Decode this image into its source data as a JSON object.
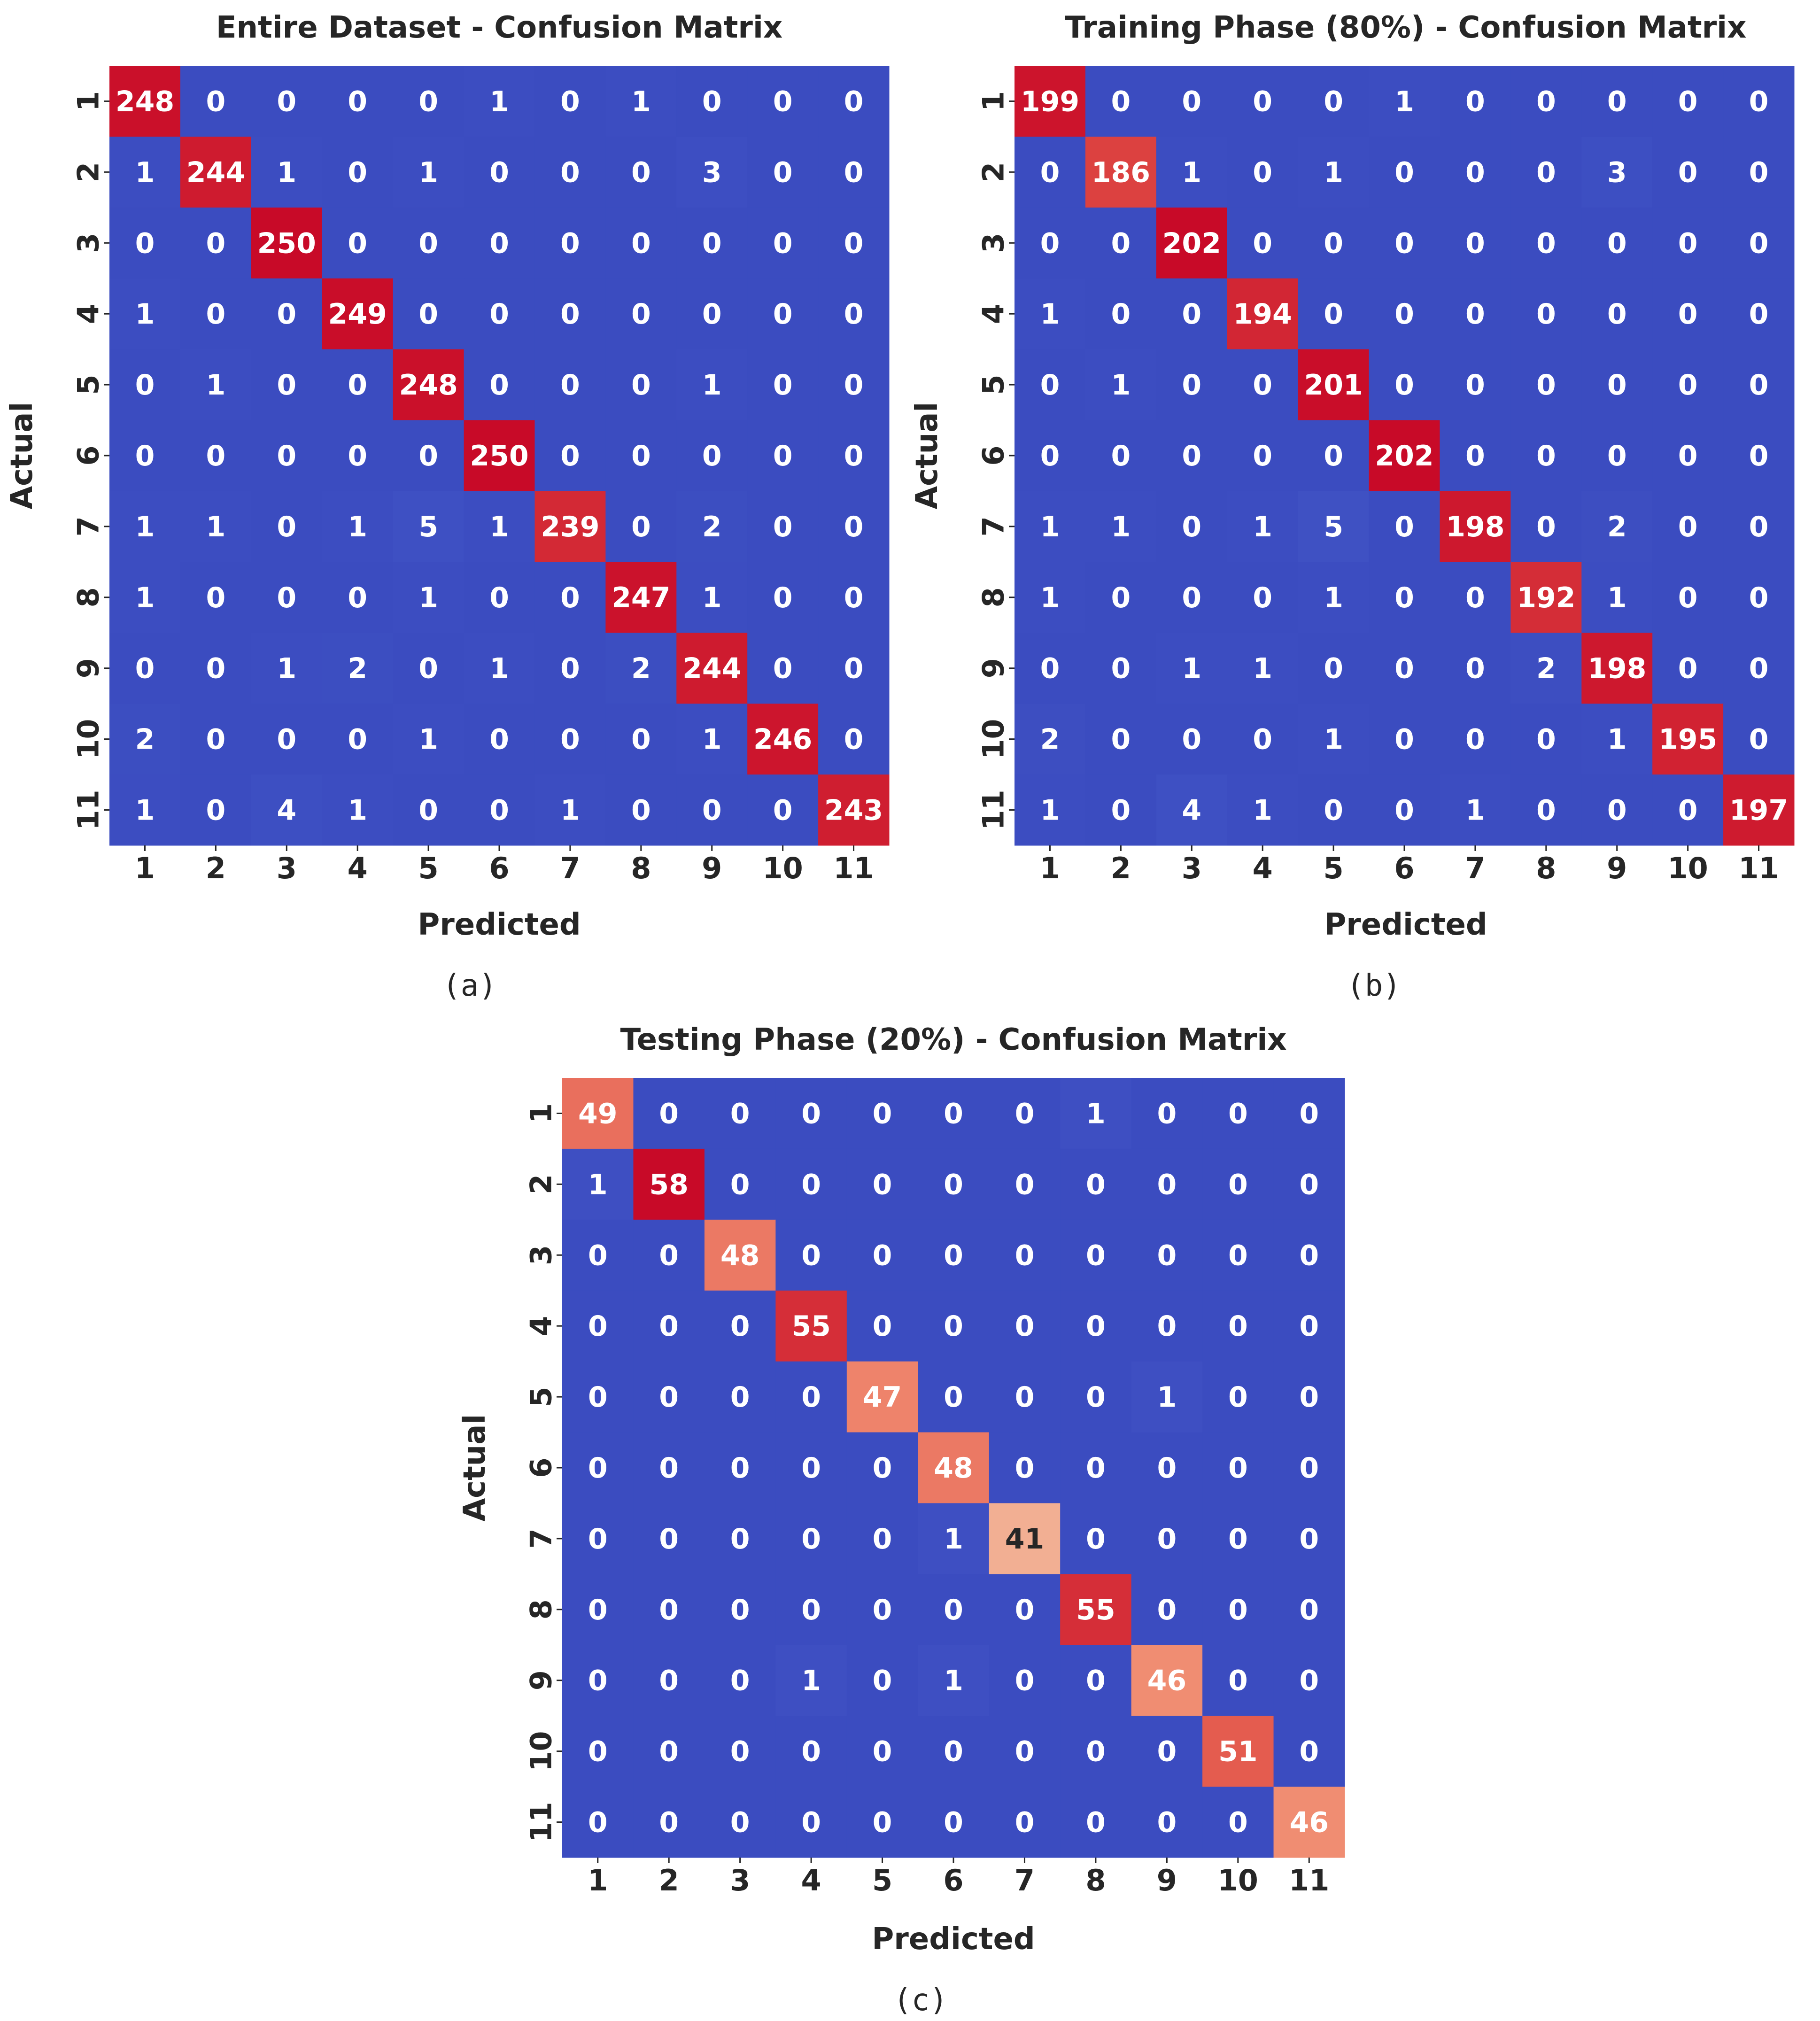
{
  "chart_data": [
    {
      "type": "heatmap",
      "title": "Entire Dataset - Confusion Matrix",
      "xlabel": "Predicted",
      "ylabel": "Actual",
      "caption": "(a)",
      "x_categories": [
        "1",
        "2",
        "3",
        "4",
        "5",
        "6",
        "7",
        "8",
        "9",
        "10",
        "11"
      ],
      "y_categories": [
        "1",
        "2",
        "3",
        "4",
        "5",
        "6",
        "7",
        "8",
        "9",
        "10",
        "11"
      ],
      "colormap": "coolwarm",
      "vmin": 0,
      "vmax": 250,
      "matrix": [
        [
          248,
          0,
          0,
          0,
          0,
          1,
          0,
          1,
          0,
          0,
          0
        ],
        [
          1,
          244,
          1,
          0,
          1,
          0,
          0,
          0,
          3,
          0,
          0
        ],
        [
          0,
          0,
          250,
          0,
          0,
          0,
          0,
          0,
          0,
          0,
          0
        ],
        [
          1,
          0,
          0,
          249,
          0,
          0,
          0,
          0,
          0,
          0,
          0
        ],
        [
          0,
          1,
          0,
          0,
          248,
          0,
          0,
          0,
          1,
          0,
          0
        ],
        [
          0,
          0,
          0,
          0,
          0,
          250,
          0,
          0,
          0,
          0,
          0
        ],
        [
          1,
          1,
          0,
          1,
          5,
          1,
          239,
          0,
          2,
          0,
          0
        ],
        [
          1,
          0,
          0,
          0,
          1,
          0,
          0,
          247,
          1,
          0,
          0
        ],
        [
          0,
          0,
          1,
          2,
          0,
          1,
          0,
          2,
          244,
          0,
          0
        ],
        [
          2,
          0,
          0,
          0,
          1,
          0,
          0,
          0,
          1,
          246,
          0
        ],
        [
          1,
          0,
          4,
          1,
          0,
          0,
          1,
          0,
          0,
          0,
          243
        ]
      ]
    },
    {
      "type": "heatmap",
      "title": "Training Phase (80%) - Confusion Matrix",
      "xlabel": "Predicted",
      "ylabel": "Actual",
      "caption": "(b)",
      "x_categories": [
        "1",
        "2",
        "3",
        "4",
        "5",
        "6",
        "7",
        "8",
        "9",
        "10",
        "11"
      ],
      "y_categories": [
        "1",
        "2",
        "3",
        "4",
        "5",
        "6",
        "7",
        "8",
        "9",
        "10",
        "11"
      ],
      "colormap": "coolwarm",
      "vmin": 0,
      "vmax": 202,
      "matrix": [
        [
          199,
          0,
          0,
          0,
          0,
          1,
          0,
          0,
          0,
          0,
          0
        ],
        [
          0,
          186,
          1,
          0,
          1,
          0,
          0,
          0,
          3,
          0,
          0
        ],
        [
          0,
          0,
          202,
          0,
          0,
          0,
          0,
          0,
          0,
          0,
          0
        ],
        [
          1,
          0,
          0,
          194,
          0,
          0,
          0,
          0,
          0,
          0,
          0
        ],
        [
          0,
          1,
          0,
          0,
          201,
          0,
          0,
          0,
          0,
          0,
          0
        ],
        [
          0,
          0,
          0,
          0,
          0,
          202,
          0,
          0,
          0,
          0,
          0
        ],
        [
          1,
          1,
          0,
          1,
          5,
          0,
          198,
          0,
          2,
          0,
          0
        ],
        [
          1,
          0,
          0,
          0,
          1,
          0,
          0,
          192,
          1,
          0,
          0
        ],
        [
          0,
          0,
          1,
          1,
          0,
          0,
          0,
          2,
          198,
          0,
          0
        ],
        [
          2,
          0,
          0,
          0,
          1,
          0,
          0,
          0,
          1,
          195,
          0
        ],
        [
          1,
          0,
          4,
          1,
          0,
          0,
          1,
          0,
          0,
          0,
          197
        ]
      ]
    },
    {
      "type": "heatmap",
      "title": "Testing Phase (20%) - Confusion Matrix",
      "xlabel": "Predicted",
      "ylabel": "Actual",
      "caption": "(c)",
      "x_categories": [
        "1",
        "2",
        "3",
        "4",
        "5",
        "6",
        "7",
        "8",
        "9",
        "10",
        "11"
      ],
      "y_categories": [
        "1",
        "2",
        "3",
        "4",
        "5",
        "6",
        "7",
        "8",
        "9",
        "10",
        "11"
      ],
      "colormap": "coolwarm",
      "vmin": 0,
      "vmax": 58,
      "matrix": [
        [
          49,
          0,
          0,
          0,
          0,
          0,
          0,
          1,
          0,
          0,
          0
        ],
        [
          1,
          58,
          0,
          0,
          0,
          0,
          0,
          0,
          0,
          0,
          0
        ],
        [
          0,
          0,
          48,
          0,
          0,
          0,
          0,
          0,
          0,
          0,
          0
        ],
        [
          0,
          0,
          0,
          55,
          0,
          0,
          0,
          0,
          0,
          0,
          0
        ],
        [
          0,
          0,
          0,
          0,
          47,
          0,
          0,
          0,
          1,
          0,
          0
        ],
        [
          0,
          0,
          0,
          0,
          0,
          48,
          0,
          0,
          0,
          0,
          0
        ],
        [
          0,
          0,
          0,
          0,
          0,
          1,
          41,
          0,
          0,
          0,
          0
        ],
        [
          0,
          0,
          0,
          0,
          0,
          0,
          0,
          55,
          0,
          0,
          0
        ],
        [
          0,
          0,
          0,
          1,
          0,
          1,
          0,
          0,
          46,
          0,
          0
        ],
        [
          0,
          0,
          0,
          0,
          0,
          0,
          0,
          0,
          0,
          51,
          0
        ],
        [
          0,
          0,
          0,
          0,
          0,
          0,
          0,
          0,
          0,
          0,
          46
        ]
      ]
    }
  ]
}
